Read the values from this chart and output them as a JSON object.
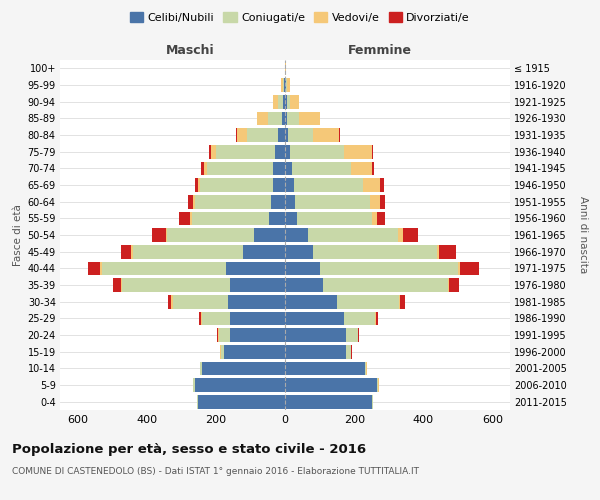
{
  "age_groups": [
    "0-4",
    "5-9",
    "10-14",
    "15-19",
    "20-24",
    "25-29",
    "30-34",
    "35-39",
    "40-44",
    "45-49",
    "50-54",
    "55-59",
    "60-64",
    "65-69",
    "70-74",
    "75-79",
    "80-84",
    "85-89",
    "90-94",
    "95-99",
    "100+"
  ],
  "birth_years": [
    "2011-2015",
    "2006-2010",
    "2001-2005",
    "1996-2000",
    "1991-1995",
    "1986-1990",
    "1981-1985",
    "1976-1980",
    "1971-1975",
    "1966-1970",
    "1961-1965",
    "1956-1960",
    "1951-1955",
    "1946-1950",
    "1941-1945",
    "1936-1940",
    "1931-1935",
    "1926-1930",
    "1921-1925",
    "1916-1920",
    "≤ 1915"
  ],
  "colors": {
    "celibe": "#4a74a8",
    "coniugato": "#c8d8a8",
    "vedovo": "#f5c878",
    "divorziato": "#cc2020"
  },
  "maschi": {
    "celibe": [
      250,
      260,
      240,
      175,
      160,
      160,
      165,
      160,
      170,
      120,
      90,
      45,
      40,
      35,
      35,
      30,
      20,
      10,
      5,
      2,
      0
    ],
    "coniugato": [
      3,
      5,
      5,
      10,
      30,
      80,
      160,
      310,
      360,
      320,
      250,
      225,
      220,
      210,
      190,
      170,
      90,
      40,
      15,
      5,
      0
    ],
    "vedovo": [
      1,
      1,
      1,
      2,
      3,
      3,
      3,
      3,
      5,
      5,
      5,
      5,
      5,
      5,
      10,
      15,
      30,
      30,
      15,
      5,
      0
    ],
    "divorziato": [
      1,
      1,
      1,
      2,
      3,
      5,
      10,
      25,
      35,
      30,
      40,
      30,
      15,
      10,
      8,
      5,
      3,
      0,
      0,
      0,
      0
    ]
  },
  "femmine": {
    "nubile": [
      250,
      265,
      230,
      175,
      175,
      170,
      150,
      110,
      100,
      80,
      65,
      35,
      30,
      25,
      20,
      15,
      10,
      5,
      5,
      2,
      0
    ],
    "coniugata": [
      3,
      5,
      5,
      15,
      35,
      90,
      180,
      360,
      400,
      360,
      260,
      215,
      215,
      200,
      170,
      155,
      70,
      35,
      10,
      5,
      0
    ],
    "vedova": [
      1,
      1,
      1,
      1,
      2,
      3,
      3,
      3,
      5,
      5,
      15,
      15,
      30,
      50,
      60,
      80,
      75,
      60,
      25,
      8,
      2
    ],
    "divorziata": [
      1,
      1,
      1,
      2,
      3,
      5,
      15,
      30,
      55,
      50,
      45,
      25,
      15,
      10,
      8,
      5,
      3,
      2,
      0,
      0,
      0
    ]
  },
  "xlim": 650,
  "title": "Popolazione per età, sesso e stato civile - 2016",
  "subtitle": "COMUNE DI CASTENEDOLO (BS) - Dati ISTAT 1° gennaio 2016 - Elaborazione TUTTITALIA.IT",
  "xlabel_maschi": "Maschi",
  "xlabel_femmine": "Femmine",
  "ylabel_left": "Fasce di età",
  "ylabel_right": "Anni di nascita",
  "legend_labels": [
    "Celibi/Nubili",
    "Coniugati/e",
    "Vedovi/e",
    "Divorziati/e"
  ],
  "bg_color": "#f5f5f5",
  "plot_bg": "#ffffff"
}
